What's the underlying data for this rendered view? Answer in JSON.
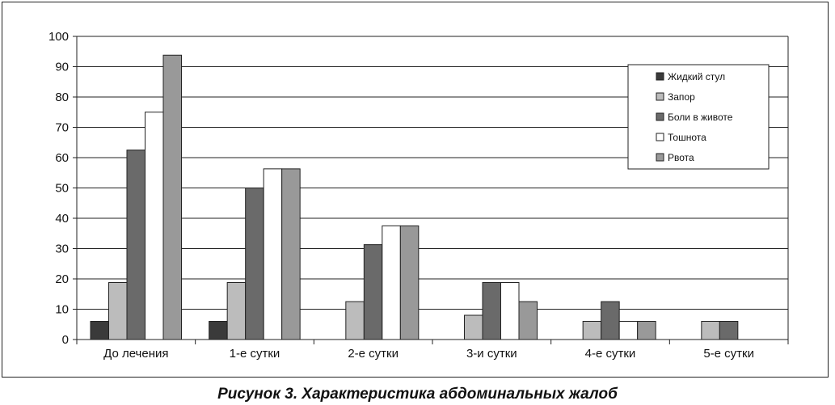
{
  "caption": "Рисунок 3. Характеристика абдоминальных жалоб",
  "chart_data": {
    "type": "bar",
    "title": "",
    "xlabel": "",
    "ylabel": "",
    "ylim": [
      0,
      100
    ],
    "yticks": [
      0,
      10,
      20,
      30,
      40,
      50,
      60,
      70,
      80,
      90,
      100
    ],
    "grid": true,
    "legend_position": "top-right",
    "categories": [
      "До лечения",
      "1-е сутки",
      "2-е сутки",
      "3-и сутки",
      "4-е сутки",
      "5-е сутки"
    ],
    "series": [
      {
        "name": "Жидкий стул",
        "color": "#3a3a3a",
        "values": [
          6,
          6,
          0,
          0,
          0,
          0
        ]
      },
      {
        "name": "Запор",
        "color": "#bcbcbc",
        "values": [
          18.8,
          18.8,
          12.5,
          8,
          6,
          6
        ]
      },
      {
        "name": "Боли в животе",
        "color": "#6a6a6a",
        "values": [
          62.5,
          50,
          31.3,
          18.8,
          12.5,
          6
        ]
      },
      {
        "name": "Тошнота",
        "color": "#ffffff",
        "values": [
          75,
          56.3,
          37.5,
          18.8,
          6,
          0
        ]
      },
      {
        "name": "Рвота",
        "color": "#999999",
        "values": [
          93.8,
          56.3,
          37.5,
          12.5,
          6,
          0
        ]
      }
    ]
  }
}
